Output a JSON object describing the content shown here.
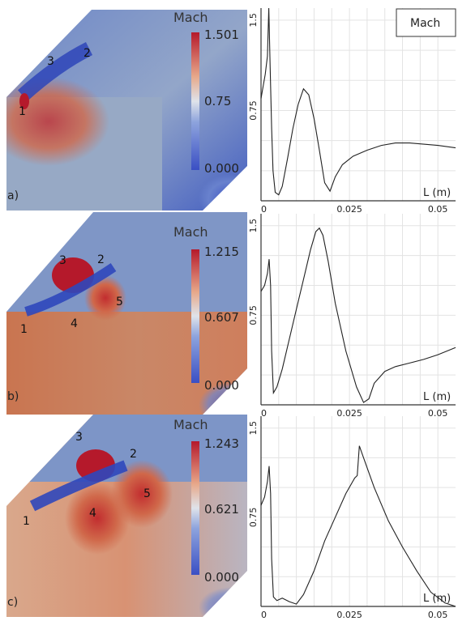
{
  "colors": {
    "low": "#3a4fc4",
    "mid": "#dde3ec",
    "high": "#b5192b",
    "background_field": "#8aa0c8",
    "curve": "#222222"
  },
  "legend": {
    "label": "Mach"
  },
  "chart_data": [
    {
      "panel": "a)",
      "type": "line",
      "contour": {
        "colorbar_title": "Mach",
        "colorbar_ticks": [
          "1.501",
          "0.75",
          "0.000"
        ],
        "range": [
          0,
          1.501
        ],
        "markers": [
          "1",
          "2",
          "3"
        ]
      },
      "xlabel": "L (m)",
      "xticks": [
        "0",
        "0.025",
        "0.05"
      ],
      "ylabel": "",
      "yticks": [
        "0.75",
        "1.5"
      ],
      "xlim": [
        0,
        0.055
      ],
      "ylim": [
        0,
        1.6
      ],
      "grid": true,
      "x": [
        0,
        0.0006,
        0.0012,
        0.0018,
        0.0022,
        0.0026,
        0.003,
        0.0034,
        0.004,
        0.005,
        0.006,
        0.0075,
        0.009,
        0.0105,
        0.012,
        0.0135,
        0.015,
        0.0165,
        0.018,
        0.0195,
        0.021,
        0.023,
        0.026,
        0.03,
        0.034,
        0.038,
        0.042,
        0.046,
        0.05,
        0.055
      ],
      "y": [
        0.85,
        0.95,
        1.05,
        1.2,
        1.6,
        1.1,
        0.6,
        0.25,
        0.07,
        0.05,
        0.12,
        0.35,
        0.6,
        0.8,
        0.93,
        0.88,
        0.68,
        0.42,
        0.15,
        0.08,
        0.2,
        0.3,
        0.37,
        0.42,
        0.46,
        0.48,
        0.48,
        0.47,
        0.46,
        0.44
      ]
    },
    {
      "panel": "b)",
      "type": "line",
      "contour": {
        "colorbar_title": "Mach",
        "colorbar_ticks": [
          "1.215",
          "0.607",
          "0.000"
        ],
        "range": [
          0,
          1.215
        ],
        "markers": [
          "1",
          "2",
          "3",
          "4",
          "5"
        ]
      },
      "xlabel": "L (m)",
      "xticks": [
        "0",
        "0.025",
        "0.05"
      ],
      "ylabel": "",
      "yticks": [
        "0.75",
        "1.5"
      ],
      "xlim": [
        0,
        0.055
      ],
      "ylim": [
        0,
        1.6
      ],
      "grid": true,
      "x": [
        0,
        0.001,
        0.0018,
        0.0023,
        0.0027,
        0.003,
        0.0035,
        0.0045,
        0.006,
        0.008,
        0.01,
        0.012,
        0.014,
        0.0155,
        0.0165,
        0.0175,
        0.019,
        0.021,
        0.024,
        0.027,
        0.029,
        0.0305,
        0.032,
        0.035,
        0.038,
        0.042,
        0.046,
        0.05,
        0.055
      ],
      "y": [
        0.95,
        1.0,
        1.1,
        1.22,
        1.0,
        0.45,
        0.1,
        0.15,
        0.3,
        0.55,
        0.8,
        1.05,
        1.3,
        1.45,
        1.48,
        1.42,
        1.2,
        0.85,
        0.45,
        0.15,
        0.02,
        0.05,
        0.18,
        0.28,
        0.32,
        0.35,
        0.38,
        0.42,
        0.48
      ]
    },
    {
      "panel": "c)",
      "type": "line",
      "contour": {
        "colorbar_title": "Mach",
        "colorbar_ticks": [
          "1.243",
          "0.621",
          "0.000"
        ],
        "range": [
          0,
          1.243
        ],
        "markers": [
          "1",
          "2",
          "3",
          "4",
          "5"
        ]
      },
      "xlabel": "L (m)",
      "xticks": [
        "0",
        "0.025",
        "0.05"
      ],
      "ylabel": "",
      "yticks": [
        "0.75",
        "1.5"
      ],
      "xlim": [
        0,
        0.055
      ],
      "ylim": [
        0,
        1.6
      ],
      "grid": true,
      "x": [
        0,
        0.001,
        0.0018,
        0.0023,
        0.0027,
        0.003,
        0.0035,
        0.0045,
        0.006,
        0.008,
        0.01,
        0.012,
        0.015,
        0.018,
        0.021,
        0.024,
        0.0265,
        0.0272,
        0.0278,
        0.029,
        0.032,
        0.036,
        0.04,
        0.044,
        0.048,
        0.052,
        0.055
      ],
      "y": [
        0.85,
        0.92,
        1.05,
        1.18,
        0.95,
        0.4,
        0.08,
        0.05,
        0.07,
        0.04,
        0.02,
        0.1,
        0.3,
        0.55,
        0.75,
        0.95,
        1.08,
        1.1,
        1.35,
        1.25,
        1.0,
        0.72,
        0.5,
        0.3,
        0.12,
        0.03,
        0.0
      ]
    }
  ]
}
